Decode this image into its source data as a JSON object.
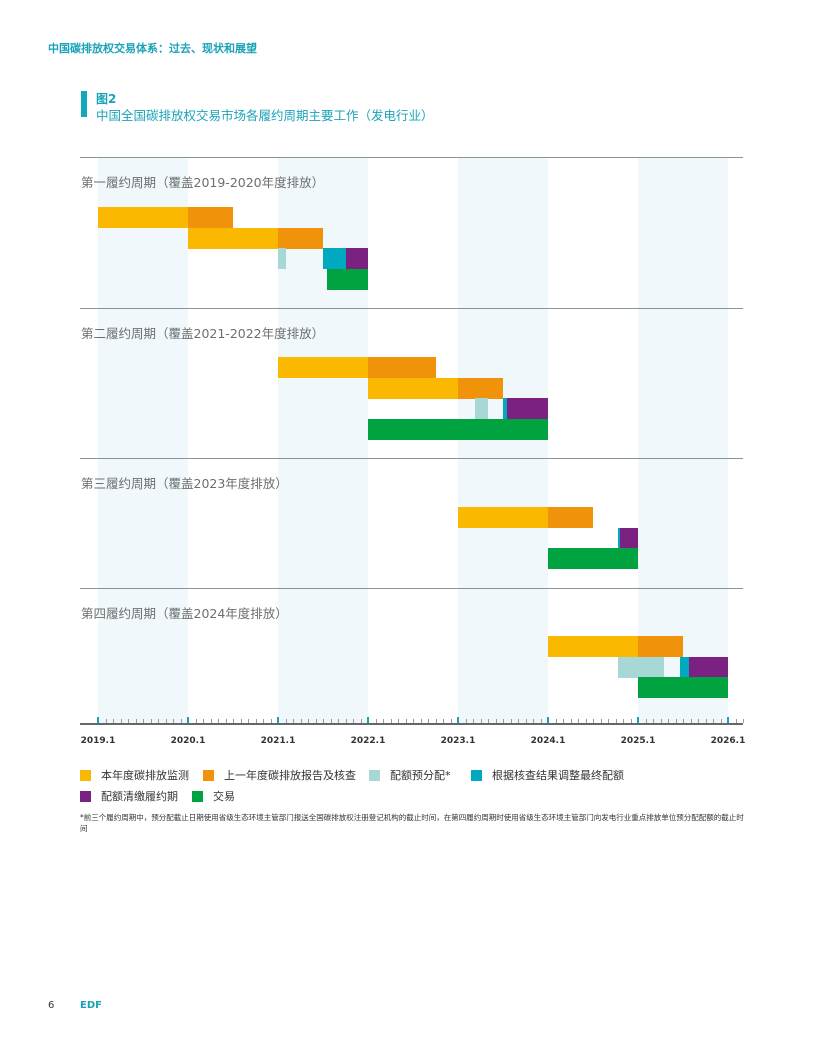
{
  "header": {
    "running_title": "中国碳排放权交易体系：过去、现状和展望"
  },
  "figure": {
    "number": "图2",
    "title": "中国全国碳排放权交易市场各履约周期主要工作（发电行业）"
  },
  "colors": {
    "monitor": "#fbb800",
    "report": "#f0920a",
    "preallocate": "#a8d8d6",
    "adjust": "#00a9c0",
    "surrender": "#7b2182",
    "trade": "#00a340"
  },
  "chart_data": {
    "type": "gantt",
    "x_ticks": [
      "2019.1",
      "2020.1",
      "2021.1",
      "2022.1",
      "2023.1",
      "2024.1",
      "2025.1",
      "2026.1"
    ],
    "xlim": [
      "2019-01-01",
      "2026-01-01"
    ],
    "legend": [
      {
        "key": "monitor",
        "label": "本年度碳排放监测"
      },
      {
        "key": "report",
        "label": "上一年度碳排放报告及核查"
      },
      {
        "key": "preallocate",
        "label": "配额预分配*"
      },
      {
        "key": "adjust",
        "label": "根据核查结果调整最终配额"
      },
      {
        "key": "surrender",
        "label": "配额清缴履约期"
      },
      {
        "key": "trade",
        "label": "交易"
      }
    ],
    "cycles": [
      {
        "label": "第一履约周期（覆盖2019-2020年度排放）",
        "bars": [
          {
            "row": 0,
            "type": "monitor",
            "start": "2019-01-01",
            "end": "2020-01-01"
          },
          {
            "row": 0,
            "type": "report",
            "start": "2020-01-01",
            "end": "2020-07-01"
          },
          {
            "row": 1,
            "type": "monitor",
            "start": "2020-01-01",
            "end": "2021-01-01"
          },
          {
            "row": 1,
            "type": "report",
            "start": "2021-01-01",
            "end": "2021-07-01"
          },
          {
            "row": 2,
            "type": "preallocate",
            "start": "2021-01-01",
            "end": "2021-02-01"
          },
          {
            "row": 2,
            "type": "adjust",
            "start": "2021-07-01",
            "end": "2021-10-01"
          },
          {
            "row": 2,
            "type": "surrender",
            "start": "2021-10-01",
            "end": "2022-01-01"
          },
          {
            "row": 3,
            "type": "trade",
            "start": "2021-07-16",
            "end": "2022-01-01"
          }
        ]
      },
      {
        "label": "第二履约周期（覆盖2021-2022年度排放）",
        "bars": [
          {
            "row": 0,
            "type": "monitor",
            "start": "2021-01-01",
            "end": "2022-01-01"
          },
          {
            "row": 0,
            "type": "report",
            "start": "2022-01-01",
            "end": "2022-10-01"
          },
          {
            "row": 1,
            "type": "monitor",
            "start": "2022-01-01",
            "end": "2023-01-01"
          },
          {
            "row": 1,
            "type": "report",
            "start": "2023-01-01",
            "end": "2023-07-01"
          },
          {
            "row": 2,
            "type": "preallocate",
            "start": "2023-03-10",
            "end": "2023-05-01"
          },
          {
            "row": 2,
            "type": "adjust",
            "start": "2023-07-01",
            "end": "2023-07-15"
          },
          {
            "row": 2,
            "type": "surrender",
            "start": "2023-07-15",
            "end": "2024-01-01"
          },
          {
            "row": 3,
            "type": "trade",
            "start": "2022-01-01",
            "end": "2024-01-01"
          }
        ]
      },
      {
        "label": "第三履约周期（覆盖2023年度排放）",
        "bars": [
          {
            "row": 0,
            "type": "monitor",
            "start": "2023-01-01",
            "end": "2024-01-01"
          },
          {
            "row": 0,
            "type": "report",
            "start": "2024-01-01",
            "end": "2024-07-01"
          },
          {
            "row": 1,
            "type": "adjust",
            "start": "2024-10-10",
            "end": "2024-10-20"
          },
          {
            "row": 1,
            "type": "surrender",
            "start": "2024-10-20",
            "end": "2025-01-01"
          },
          {
            "row": 2,
            "type": "trade",
            "start": "2024-01-01",
            "end": "2025-01-01"
          }
        ]
      },
      {
        "label": "第四履约周期（覆盖2024年度排放）",
        "bars": [
          {
            "row": 0,
            "type": "monitor",
            "start": "2024-01-01",
            "end": "2025-01-01"
          },
          {
            "row": 0,
            "type": "report",
            "start": "2025-01-01",
            "end": "2025-07-01"
          },
          {
            "row": 1,
            "type": "preallocate",
            "start": "2024-10-10",
            "end": "2025-04-15"
          },
          {
            "row": 1,
            "type": "adjust",
            "start": "2025-06-20",
            "end": "2025-07-25"
          },
          {
            "row": 1,
            "type": "surrender",
            "start": "2025-07-25",
            "end": "2026-01-01"
          },
          {
            "row": 2,
            "type": "trade",
            "start": "2025-01-01",
            "end": "2026-01-01"
          }
        ]
      }
    ],
    "grid": "alternating year shading"
  },
  "footnote": "*前三个履约周期中，预分配截止日期使用省级生态环境主管部门报送全国碳排放权注册登记机构的截止时间，在第四履约周期时使用省级生态环境主管部门向发电行业重点排放单位预分配配额的截止时间",
  "footer": {
    "page": "6",
    "brand": "EDF"
  }
}
